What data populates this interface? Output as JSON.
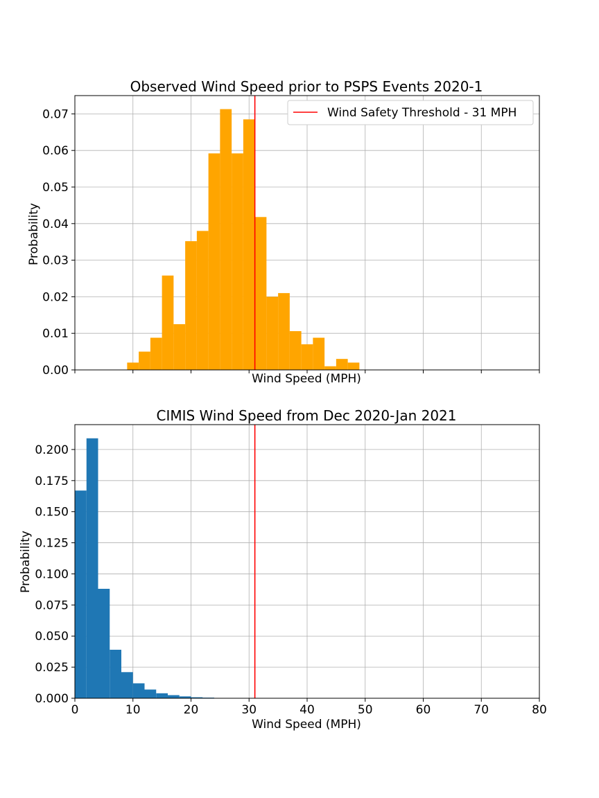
{
  "chart_data": [
    {
      "type": "bar",
      "title": "Observed Wind Speed prior to PSPS Events 2020-1",
      "xlabel": "Wind Speed (MPH)",
      "ylabel": "Probability",
      "xlim": [
        0,
        80
      ],
      "ylim": [
        0,
        0.075
      ],
      "grid": true,
      "color": "#ffa500",
      "show_x_tick_labels": false,
      "yticks": [
        "0.00",
        "0.01",
        "0.02",
        "0.03",
        "0.04",
        "0.05",
        "0.06",
        "0.07"
      ],
      "ytick_values": [
        0,
        0.01,
        0.02,
        0.03,
        0.04,
        0.05,
        0.06,
        0.07
      ],
      "xticks": [
        0,
        10,
        20,
        30,
        40,
        50,
        60,
        70,
        80
      ],
      "bins": [
        {
          "start": 9.0,
          "end": 11.0,
          "value": 0.002
        },
        {
          "start": 11.0,
          "end": 13.0,
          "value": 0.005
        },
        {
          "start": 13.0,
          "end": 15.0,
          "value": 0.0088
        },
        {
          "start": 15.0,
          "end": 17.0,
          "value": 0.0258
        },
        {
          "start": 17.0,
          "end": 19.0,
          "value": 0.0125
        },
        {
          "start": 19.0,
          "end": 21.0,
          "value": 0.0352
        },
        {
          "start": 21.0,
          "end": 23.0,
          "value": 0.038
        },
        {
          "start": 23.0,
          "end": 25.0,
          "value": 0.0592
        },
        {
          "start": 25.0,
          "end": 27.0,
          "value": 0.0713
        },
        {
          "start": 27.0,
          "end": 29.0,
          "value": 0.0592
        },
        {
          "start": 29.0,
          "end": 31.0,
          "value": 0.0685
        },
        {
          "start": 31.0,
          "end": 33.0,
          "value": 0.0418
        },
        {
          "start": 33.0,
          "end": 35.0,
          "value": 0.02
        },
        {
          "start": 35.0,
          "end": 37.0,
          "value": 0.021
        },
        {
          "start": 37.0,
          "end": 39.0,
          "value": 0.0106
        },
        {
          "start": 39.0,
          "end": 41.0,
          "value": 0.007
        },
        {
          "start": 41.0,
          "end": 43.0,
          "value": 0.0088
        },
        {
          "start": 43.0,
          "end": 45.0,
          "value": 0.001
        },
        {
          "start": 45.0,
          "end": 47.0,
          "value": 0.003
        },
        {
          "start": 47.0,
          "end": 49.0,
          "value": 0.002
        }
      ],
      "threshold": {
        "x": 31,
        "color": "#ff0000",
        "label": "Wind Safety Threshold - 31 MPH"
      },
      "legend_position": "top-right"
    },
    {
      "type": "bar",
      "title": "CIMIS Wind Speed from Dec 2020-Jan 2021",
      "xlabel": "Wind Speed (MPH)",
      "ylabel": "Probability",
      "xlim": [
        0,
        80
      ],
      "ylim": [
        0,
        0.22
      ],
      "grid": true,
      "color": "#1f77b4",
      "show_x_tick_labels": true,
      "yticks": [
        "0.000",
        "0.025",
        "0.050",
        "0.075",
        "0.100",
        "0.125",
        "0.150",
        "0.175",
        "0.200"
      ],
      "ytick_values": [
        0,
        0.025,
        0.05,
        0.075,
        0.1,
        0.125,
        0.15,
        0.175,
        0.2
      ],
      "xticks": [
        0,
        10,
        20,
        30,
        40,
        50,
        60,
        70,
        80
      ],
      "xtick_labels": [
        "0",
        "10",
        "20",
        "30",
        "40",
        "50",
        "60",
        "70",
        "80"
      ],
      "bins": [
        {
          "start": 0.0,
          "end": 2.0,
          "value": 0.167
        },
        {
          "start": 2.0,
          "end": 4.0,
          "value": 0.209
        },
        {
          "start": 4.0,
          "end": 6.0,
          "value": 0.088
        },
        {
          "start": 6.0,
          "end": 8.0,
          "value": 0.039
        },
        {
          "start": 8.0,
          "end": 10.0,
          "value": 0.021
        },
        {
          "start": 10.0,
          "end": 12.0,
          "value": 0.012
        },
        {
          "start": 12.0,
          "end": 14.0,
          "value": 0.007
        },
        {
          "start": 14.0,
          "end": 16.0,
          "value": 0.004
        },
        {
          "start": 16.0,
          "end": 18.0,
          "value": 0.0025
        },
        {
          "start": 18.0,
          "end": 20.0,
          "value": 0.0015
        },
        {
          "start": 20.0,
          "end": 22.0,
          "value": 0.0008
        },
        {
          "start": 22.0,
          "end": 24.0,
          "value": 0.0005
        }
      ],
      "threshold": {
        "x": 31,
        "color": "#ff0000"
      }
    }
  ]
}
